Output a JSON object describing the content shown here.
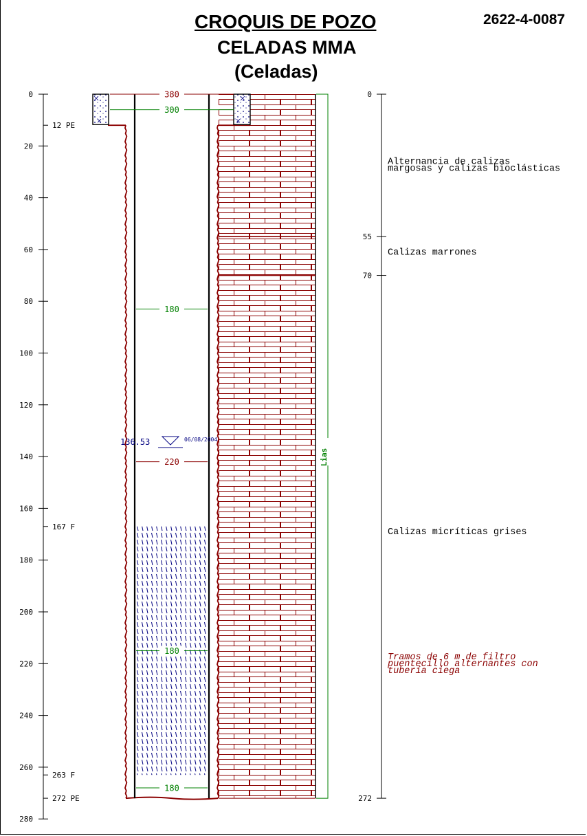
{
  "header": {
    "title": "CROQUIS DE POZO",
    "subtitle": "CELADAS MMA",
    "subtitle2": "(Celadas)",
    "code": "2622-4-0087"
  },
  "depth_axis": {
    "min": 0,
    "max": 280,
    "ticks": [
      0,
      20,
      40,
      60,
      80,
      100,
      120,
      140,
      160,
      180,
      200,
      220,
      240,
      260,
      280
    ]
  },
  "construction_marks": [
    {
      "depth": 12,
      "text": "12 PE"
    },
    {
      "depth": 167,
      "text": "167 F"
    },
    {
      "depth": 263,
      "text": "263 F"
    },
    {
      "depth": 272,
      "text": "272 PE"
    }
  ],
  "diameters": [
    {
      "depth": 0,
      "text": "380",
      "color": "#8b0000"
    },
    {
      "depth": 6,
      "text": "300",
      "color": "#008000"
    },
    {
      "depth": 83,
      "text": "180",
      "color": "#008000"
    },
    {
      "depth": 142,
      "text": "220",
      "color": "#8b0000"
    },
    {
      "depth": 215,
      "text": "180",
      "color": "#008000"
    },
    {
      "depth": 268,
      "text": "180",
      "color": "#008000"
    }
  ],
  "water_level": {
    "value": "136.53",
    "date": "06/08/2004",
    "depth": 136.53
  },
  "screen_interval": {
    "top": 167,
    "bottom": 263
  },
  "formation": {
    "name": "Lias",
    "top": 0,
    "bottom": 272
  },
  "lithology_column": {
    "boundaries": [
      0,
      55,
      70,
      272
    ],
    "labels": [
      {
        "depth": 27,
        "lines": [
          "Alternancia de calizas",
          "margosas y calizas bioclásticas"
        ]
      },
      {
        "depth": 62,
        "lines": [
          "Calizas marrones"
        ]
      },
      {
        "depth": 170,
        "lines": [
          "Calizas micríticas grises"
        ]
      }
    ],
    "note": {
      "depth": 218,
      "lines": [
        "Tramos de 6 m de filtro",
        "puentecillo alternantes con",
        "tubería ciega"
      ]
    }
  },
  "colors": {
    "brick": "#8b0000",
    "green": "#008000",
    "water": "#000080"
  }
}
